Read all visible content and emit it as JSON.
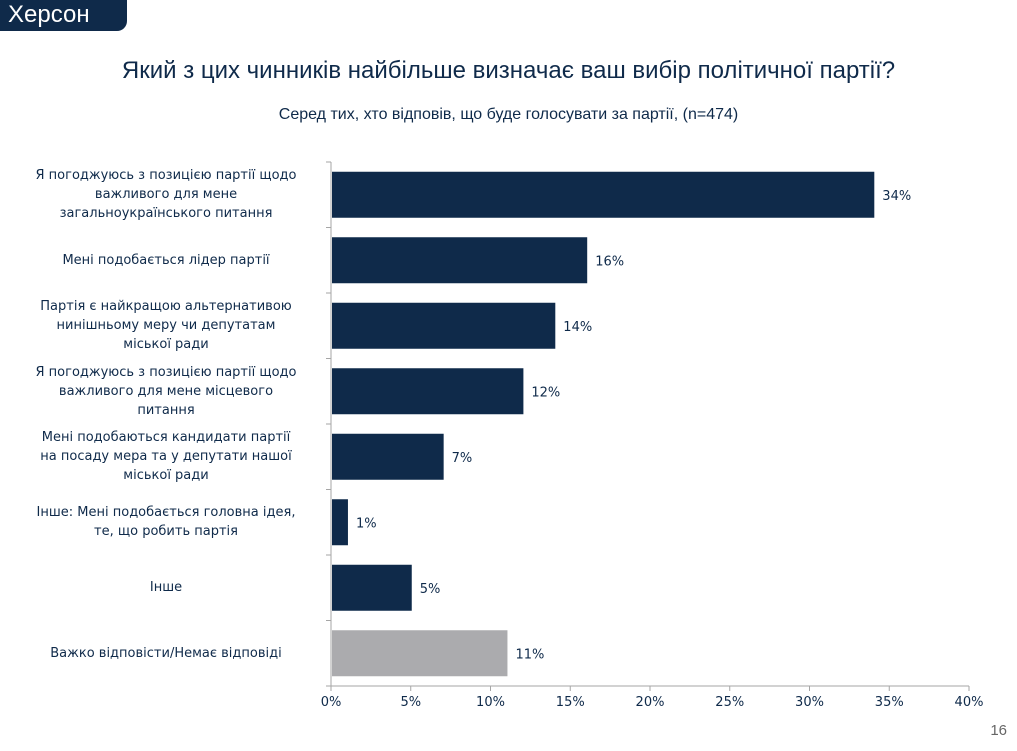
{
  "region": "Херсон",
  "title": "Який з цих чинників найбільше визначає ваш вибір політичної партії?",
  "subtitle": "Серед тих, хто відповів, що буде голосувати за партії, (n=474)",
  "page_number": "16",
  "colors": {
    "primary": "#0f2a4a",
    "neutral": "#ababae"
  },
  "chart_data": {
    "type": "bar",
    "orientation": "horizontal",
    "title": "Який з цих чинників найбільше визначає ваш вибір політичної партії?",
    "subtitle": "Серед тих, хто відповів, що буде голосувати за партії, (n=474)",
    "categories": [
      "Я погоджуюсь з позицією партії щодо важливого для мене загальноукраїнського питання",
      "Мені подобається лідер партії",
      "Партія є найкращою альтернативою нинішньому меру чи депутатам міської ради",
      "Я погоджуюсь з позицією партії щодо важливого для мене місцевого питання",
      "Мені подобаються кандидати партії на посаду мера та у депутати нашої міської ради",
      "Інше: Мені подобається головна ідея, те, що робить партія",
      "Інше",
      "Важко відповісти/Немає відповіді"
    ],
    "label_lines": [
      [
        "Я погоджуюсь з позицією партії щодо",
        "важливого для мене",
        "загальноукраїнського питання"
      ],
      [
        "Мені подобається лідер партії"
      ],
      [
        "Партія є найкращою альтернативою",
        "нинішньому меру чи депутатам",
        "міської ради"
      ],
      [
        "Я погоджуюсь з позицією партії щодо",
        "важливого для мене місцевого",
        "питання"
      ],
      [
        "Мені подобаються кандидати партії",
        "на посаду мера та у депутати нашої",
        "міської ради"
      ],
      [
        "Інше: Мені подобається головна ідея,",
        "те, що робить партія"
      ],
      [
        "Інше"
      ],
      [
        "Важко відповісти/Немає відповіді"
      ]
    ],
    "values": [
      34,
      16,
      14,
      12,
      7,
      1,
      5,
      11
    ],
    "data_labels": [
      "34%",
      "16%",
      "14%",
      "12%",
      "7%",
      "1%",
      "5%",
      "11%"
    ],
    "bar_colors": [
      "#0f2a4a",
      "#0f2a4a",
      "#0f2a4a",
      "#0f2a4a",
      "#0f2a4a",
      "#0f2a4a",
      "#0f2a4a",
      "#ababae"
    ],
    "xlim": [
      0,
      40
    ],
    "xticks": [
      0,
      5,
      10,
      15,
      20,
      25,
      30,
      35,
      40
    ],
    "xtick_labels": [
      "0%",
      "5%",
      "10%",
      "15%",
      "20%",
      "25%",
      "30%",
      "35%",
      "40%"
    ],
    "xlabel": "",
    "ylabel": "",
    "grid": false,
    "legend": "none"
  }
}
